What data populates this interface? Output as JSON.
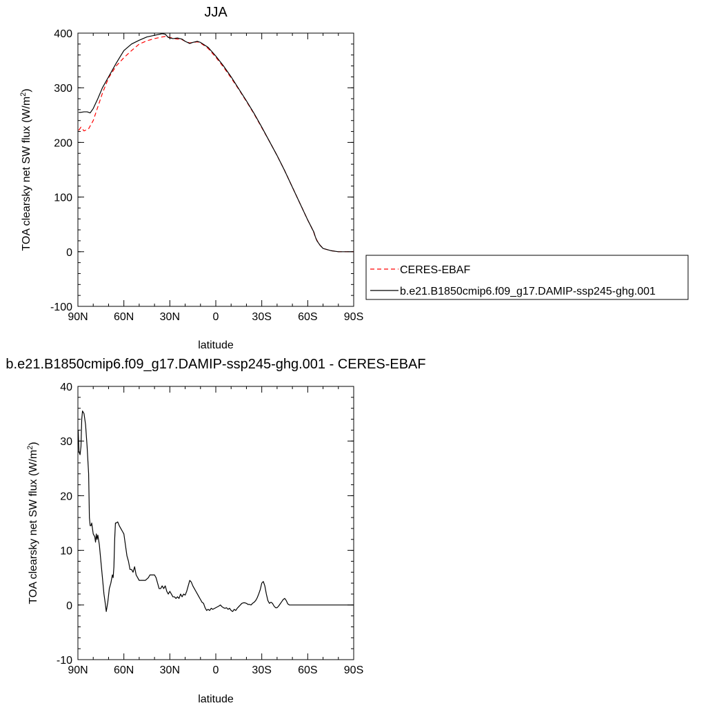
{
  "chart_data": [
    {
      "type": "line",
      "title": "JJA",
      "xlabel": "latitude",
      "ylabel": "TOA clearsky net SW flux (W/m2)",
      "ylabel_parts": [
        "TOA clearsky net SW flux (W/m",
        "2",
        ")"
      ],
      "xlim": [
        90,
        -90
      ],
      "ylim": [
        -100,
        400
      ],
      "x_ticks": [
        90,
        60,
        30,
        0,
        -30,
        -60,
        -90
      ],
      "x_tick_labels": [
        "90N",
        "60N",
        "30N",
        "0",
        "30S",
        "60S",
        "90S"
      ],
      "y_ticks": [
        -100,
        0,
        100,
        200,
        300,
        400
      ],
      "y_tick_labels": [
        "-100",
        "0",
        "100",
        "200",
        "300",
        "400"
      ],
      "legend_position": "right",
      "series": [
        {
          "name": "CERES-EBAF",
          "color": "#ff0000",
          "dash": "dashed",
          "points": [
            [
              89.5,
              222
            ],
            [
              88,
              228
            ],
            [
              86,
              221
            ],
            [
              83,
              225
            ],
            [
              80,
              240
            ],
            [
              77,
              265
            ],
            [
              74,
              290
            ],
            [
              70,
              318
            ],
            [
              65,
              340
            ],
            [
              60,
              355
            ],
            [
              55,
              368
            ],
            [
              50,
              380
            ],
            [
              45,
              386
            ],
            [
              40,
              390
            ],
            [
              35,
              393
            ],
            [
              33,
              394
            ],
            [
              30,
              392
            ],
            [
              27,
              390
            ],
            [
              25,
              389
            ],
            [
              22,
              388
            ],
            [
              20,
              385
            ],
            [
              17,
              382
            ],
            [
              15,
              383
            ],
            [
              12,
              384
            ],
            [
              10,
              382
            ],
            [
              5,
              372
            ],
            [
              0,
              356
            ],
            [
              -5,
              338
            ],
            [
              -10,
              318
            ],
            [
              -15,
              297
            ],
            [
              -20,
              275
            ],
            [
              -25,
              252
            ],
            [
              -30,
              227
            ],
            [
              -35,
              202
            ],
            [
              -40,
              176
            ],
            [
              -45,
              148
            ],
            [
              -50,
              118
            ],
            [
              -55,
              88
            ],
            [
              -60,
              58
            ],
            [
              -62,
              47
            ],
            [
              -64,
              35
            ],
            [
              -65,
              26
            ],
            [
              -66,
              21
            ],
            [
              -68,
              12
            ],
            [
              -70,
              6
            ],
            [
              -75,
              2
            ],
            [
              -80,
              0
            ],
            [
              -85,
              0
            ],
            [
              -90,
              0
            ]
          ]
        },
        {
          "name": "b.e21.B1850cmip6.f09_g17.DAMIP-ssp245-ghg.001",
          "color": "#000000",
          "dash": "solid",
          "points": [
            [
              89.5,
              255
            ],
            [
              88,
              255
            ],
            [
              86,
              256
            ],
            [
              84,
              256
            ],
            [
              82,
              254
            ],
            [
              80,
              262
            ],
            [
              77,
              280
            ],
            [
              74,
              300
            ],
            [
              70,
              320
            ],
            [
              65,
              345
            ],
            [
              60,
              368
            ],
            [
              55,
              380
            ],
            [
              50,
              387
            ],
            [
              45,
              393
            ],
            [
              40,
              396
            ],
            [
              35,
              399
            ],
            [
              33,
              398
            ],
            [
              31,
              392
            ],
            [
              28,
              390
            ],
            [
              25,
              391
            ],
            [
              22,
              389
            ],
            [
              20,
              385
            ],
            [
              17,
              381
            ],
            [
              15,
              383
            ],
            [
              12,
              385
            ],
            [
              10,
              383
            ],
            [
              5,
              374
            ],
            [
              0,
              358
            ],
            [
              -5,
              340
            ],
            [
              -10,
              320
            ],
            [
              -15,
              298
            ],
            [
              -20,
              276
            ],
            [
              -25,
              253
            ],
            [
              -30,
              228
            ],
            [
              -35,
              202
            ],
            [
              -40,
              176
            ],
            [
              -45,
              148
            ],
            [
              -50,
              118
            ],
            [
              -55,
              88
            ],
            [
              -60,
              58
            ],
            [
              -62,
              47
            ],
            [
              -64,
              36
            ],
            [
              -65,
              27
            ],
            [
              -66,
              20
            ],
            [
              -68,
              12
            ],
            [
              -70,
              6
            ],
            [
              -75,
              2
            ],
            [
              -80,
              0
            ],
            [
              -85,
              0
            ],
            [
              -90,
              0
            ]
          ]
        }
      ]
    },
    {
      "type": "line",
      "title": "b.e21.B1850cmip6.f09_g17.DAMIP-ssp245-ghg.001 - CERES-EBAF",
      "xlabel": "latitude",
      "ylabel": "TOA clearsky net SW flux (W/m2)",
      "ylabel_parts": [
        "TOA clearsky net SW flux (W/m",
        "2",
        ")"
      ],
      "xlim": [
        90,
        -90
      ],
      "ylim": [
        -10,
        40
      ],
      "x_ticks": [
        90,
        60,
        30,
        0,
        -30,
        -60,
        -90
      ],
      "x_tick_labels": [
        "90N",
        "60N",
        "30N",
        "0",
        "30S",
        "60S",
        "90S"
      ],
      "y_ticks": [
        -10,
        0,
        10,
        20,
        30,
        40
      ],
      "y_tick_labels": [
        "-10",
        "0",
        "10",
        "20",
        "30",
        "40"
      ],
      "series": [
        {
          "color": "#000000",
          "dash": "solid",
          "points": [
            [
              89.8,
              32
            ],
            [
              89.3,
              28
            ],
            [
              88.6,
              27.5
            ],
            [
              88,
              29
            ],
            [
              87.5,
              34
            ],
            [
              87,
              35.5
            ],
            [
              86,
              35
            ],
            [
              85,
              33
            ],
            [
              84,
              29
            ],
            [
              83,
              24
            ],
            [
              82.5,
              16
            ],
            [
              82,
              14.5
            ],
            [
              81.5,
              14.5
            ],
            [
              81,
              15
            ],
            [
              80,
              13
            ],
            [
              79,
              12.5
            ],
            [
              78.5,
              11.5
            ],
            [
              78,
              13
            ],
            [
              77.5,
              12
            ],
            [
              77,
              12.8
            ],
            [
              76,
              11
            ],
            [
              75,
              8
            ],
            [
              74,
              5
            ],
            [
              73,
              2
            ],
            [
              72,
              0
            ],
            [
              71.5,
              -1.2
            ],
            [
              70.5,
              0.5
            ],
            [
              69.5,
              3
            ],
            [
              68.5,
              4
            ],
            [
              67.5,
              5.5
            ],
            [
              67,
              5
            ],
            [
              66.5,
              7
            ],
            [
              66,
              12
            ],
            [
              65.5,
              15
            ],
            [
              65,
              15
            ],
            [
              64,
              15.2
            ],
            [
              63,
              14.5
            ],
            [
              62,
              14
            ],
            [
              61,
              13.5
            ],
            [
              60,
              13
            ],
            [
              59,
              11
            ],
            [
              58,
              9
            ],
            [
              57,
              8
            ],
            [
              56,
              6.5
            ],
            [
              55,
              6.5
            ],
            [
              54,
              6
            ],
            [
              53,
              7
            ],
            [
              52,
              5.5
            ],
            [
              51,
              5
            ],
            [
              50,
              4.5
            ],
            [
              48,
              4.5
            ],
            [
              46,
              4.5
            ],
            [
              44,
              5
            ],
            [
              43,
              5.5
            ],
            [
              42,
              5.5
            ],
            [
              40,
              5.5
            ],
            [
              39,
              5
            ],
            [
              38,
              4
            ],
            [
              37,
              3
            ],
            [
              36,
              3
            ],
            [
              35,
              3.5
            ],
            [
              34,
              3
            ],
            [
              33,
              3.5
            ],
            [
              32,
              2.5
            ],
            [
              31,
              2
            ],
            [
              30,
              2.5
            ],
            [
              29,
              2
            ],
            [
              28,
              1.5
            ],
            [
              27,
              1.5
            ],
            [
              26,
              1.2
            ],
            [
              25,
              1.5
            ],
            [
              24,
              1.2
            ],
            [
              23,
              2
            ],
            [
              22,
              1.5
            ],
            [
              21,
              2
            ],
            [
              20,
              1.8
            ],
            [
              19,
              2.5
            ],
            [
              18,
              3.5
            ],
            [
              17,
              4.5
            ],
            [
              16,
              4.2
            ],
            [
              15,
              3.5
            ],
            [
              14,
              3
            ],
            [
              13,
              2.5
            ],
            [
              12,
              2
            ],
            [
              11,
              1.5
            ],
            [
              10,
              1
            ],
            [
              9,
              0.5
            ],
            [
              8,
              0.3
            ],
            [
              7,
              -0.5
            ],
            [
              6,
              -1
            ],
            [
              5,
              -0.8
            ],
            [
              4,
              -1
            ],
            [
              3,
              -0.6
            ],
            [
              2,
              -0.8
            ],
            [
              0,
              -0.5
            ],
            [
              -2,
              -0.2
            ],
            [
              -3,
              0
            ],
            [
              -4,
              -0.3
            ],
            [
              -5,
              -0.5
            ],
            [
              -6,
              -0.6
            ],
            [
              -7,
              -0.5
            ],
            [
              -8,
              -0.8
            ],
            [
              -9,
              -0.6
            ],
            [
              -10,
              -1
            ],
            [
              -11,
              -1.2
            ],
            [
              -12,
              -0.8
            ],
            [
              -13,
              -1
            ],
            [
              -14,
              -0.6
            ],
            [
              -15,
              -0.3
            ],
            [
              -16,
              0
            ],
            [
              -17,
              0.3
            ],
            [
              -18,
              0.4
            ],
            [
              -19,
              0.4
            ],
            [
              -20,
              0.3
            ],
            [
              -21,
              0.1
            ],
            [
              -22,
              0.1
            ],
            [
              -23,
              0
            ],
            [
              -24,
              0.3
            ],
            [
              -25,
              0.5
            ],
            [
              -26,
              0.8
            ],
            [
              -27,
              1.3
            ],
            [
              -28,
              2
            ],
            [
              -29,
              2.8
            ],
            [
              -30,
              4
            ],
            [
              -31,
              4.3
            ],
            [
              -32,
              3.5
            ],
            [
              -33,
              2
            ],
            [
              -34,
              0.8
            ],
            [
              -35,
              0.3
            ],
            [
              -36,
              0.5
            ],
            [
              -37,
              0.3
            ],
            [
              -38,
              -0.2
            ],
            [
              -39,
              -0.5
            ],
            [
              -40,
              -0.5
            ],
            [
              -41,
              -0.2
            ],
            [
              -42,
              0.2
            ],
            [
              -43,
              0.6
            ],
            [
              -44,
              1
            ],
            [
              -45,
              1.2
            ],
            [
              -46,
              0.8
            ],
            [
              -47,
              0.2
            ],
            [
              -48,
              0
            ],
            [
              -50,
              0
            ],
            [
              -55,
              0
            ],
            [
              -60,
              0
            ],
            [
              -65,
              0
            ],
            [
              -70,
              0
            ],
            [
              -75,
              0
            ],
            [
              -80,
              0
            ],
            [
              -85,
              0
            ],
            [
              -90,
              0
            ]
          ]
        }
      ]
    }
  ]
}
